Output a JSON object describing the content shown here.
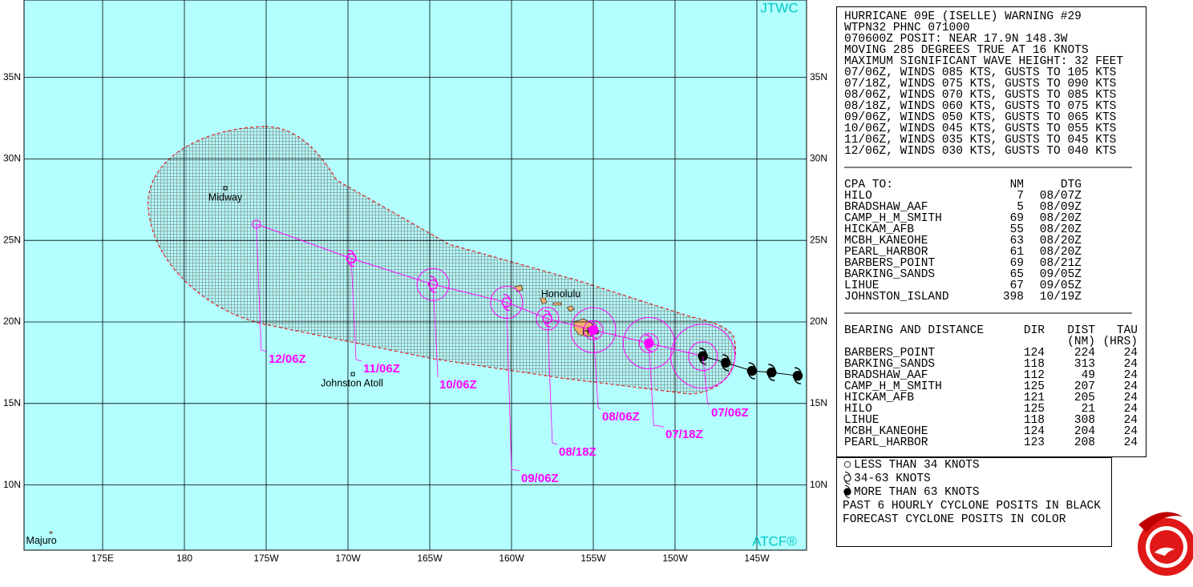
{
  "map": {
    "brand_top": "JTWC",
    "brand_bottom": "ATCF®",
    "lat_ticks": [
      {
        "value": 10,
        "label": "10N"
      },
      {
        "value": 15,
        "label": "15N"
      },
      {
        "value": 20,
        "label": "20N"
      },
      {
        "value": 25,
        "label": "25N"
      },
      {
        "value": 30,
        "label": "30N"
      },
      {
        "value": 35,
        "label": "35N"
      }
    ],
    "lon_ticks": [
      {
        "value": 175,
        "label": "175E"
      },
      180,
      {
        "value": -175,
        "label": "175W"
      },
      {
        "value": -170,
        "label": "170W"
      },
      {
        "value": -165,
        "label": "165W"
      },
      {
        "value": -160,
        "label": "160W"
      },
      {
        "value": -155,
        "label": "155W"
      },
      {
        "value": -150,
        "label": "150W"
      },
      {
        "value": -145,
        "label": "145W"
      }
    ],
    "places": [
      {
        "name": "Midway",
        "lat": 28.2,
        "lon": -177.5
      },
      {
        "name": "Johnston Atoll",
        "lat": 16.8,
        "lon": -169.7
      },
      {
        "name": "Honolulu",
        "lat": 21.3,
        "lon": -157.9
      },
      {
        "name": "Hilo",
        "lat": 19.7,
        "lon": -155.1
      },
      {
        "name": "Majuro",
        "lat": 7.1,
        "lon": 171.4
      }
    ],
    "forecast": [
      {
        "label": "07/06Z",
        "lat": 17.9,
        "lon": -148.3,
        "symbol": "hurricane",
        "color": "#000000"
      },
      {
        "label": "07/18Z",
        "lat": 18.7,
        "lon": -151.6,
        "symbol": "hurricane",
        "color": "#ff00ff"
      },
      {
        "label": "08/06Z",
        "lat": 19.5,
        "lon": -155.0,
        "symbol": "hurricane",
        "color": "#ff00ff"
      },
      {
        "label": "08/18Z",
        "lat": 20.2,
        "lon": -157.8,
        "symbol": "storm",
        "color": "#ff00ff"
      },
      {
        "label": "09/06Z",
        "lat": 21.2,
        "lon": -160.3,
        "symbol": "storm",
        "color": "#ff00ff"
      },
      {
        "label": "10/06Z",
        "lat": 22.3,
        "lon": -164.8,
        "symbol": "storm",
        "color": "#ff00ff"
      },
      {
        "label": "11/06Z",
        "lat": 23.9,
        "lon": -169.8,
        "symbol": "storm",
        "color": "#ff00ff"
      },
      {
        "label": "12/06Z",
        "lat": 26.0,
        "lon": -175.6,
        "symbol": "depression",
        "color": "#ff00ff"
      }
    ],
    "past": [
      {
        "lat": 17.5,
        "lon": -146.9
      },
      {
        "lat": 17.0,
        "lon": -145.3
      },
      {
        "lat": 16.9,
        "lon": -144.1
      },
      {
        "lat": 16.7,
        "lon": -142.5
      }
    ]
  },
  "header": {
    "lines": [
      "HURRICANE 09E (ISELLE) WARNING #29",
      "WTPN32 PHNC 071000",
      "070600Z POSIT: NEAR 17.9N 148.3W",
      "MOVING 285 DEGREES TRUE AT 16 KNOTS",
      "MAXIMUM SIGNIFICANT WAVE HEIGHT: 32 FEET",
      "07/06Z, WINDS 085 KTS, GUSTS TO 105 KTS",
      "07/18Z, WINDS 075 KTS, GUSTS TO 090 KTS",
      "08/06Z, WINDS 070 KTS, GUSTS TO 085 KTS",
      "08/18Z, WINDS 060 KTS, GUSTS TO 075 KTS",
      "09/06Z, WINDS 050 KTS, GUSTS TO 065 KTS",
      "10/06Z, WINDS 045 KTS, GUSTS TO 055 KTS",
      "11/06Z, WINDS 035 KTS, GUSTS TO 045 KTS",
      "12/06Z, WINDS 030 KTS, GUSTS TO 040 KTS"
    ]
  },
  "cpa": {
    "title": "CPA TO:",
    "columns": [
      "NM",
      "DTG"
    ],
    "rows": [
      [
        "HILO",
        "7",
        "08/07Z"
      ],
      [
        "BRADSHAW_AAF",
        "5",
        "08/09Z"
      ],
      [
        "CAMP_H_M_SMITH",
        "69",
        "08/20Z"
      ],
      [
        "HICKAM_AFB",
        "55",
        "08/20Z"
      ],
      [
        "MCBH_KANEOHE",
        "63",
        "08/20Z"
      ],
      [
        "PEARL_HARBOR",
        "61",
        "08/20Z"
      ],
      [
        "BARBERS_POINT",
        "69",
        "08/21Z"
      ],
      [
        "BARKING_SANDS",
        "65",
        "09/05Z"
      ],
      [
        "LIHUE",
        "67",
        "09/05Z"
      ],
      [
        "JOHNSTON_ISLAND",
        "398",
        "10/19Z"
      ]
    ]
  },
  "bearing": {
    "title": "BEARING AND DISTANCE",
    "columns": [
      "DIR",
      "DIST",
      "TAU"
    ],
    "units": [
      "(NM)",
      "(HRS)"
    ],
    "rows": [
      [
        "BARBERS_POINT",
        "124",
        "224",
        "24"
      ],
      [
        "BARKING_SANDS",
        "118",
        "313",
        "24"
      ],
      [
        "BRADSHAW_AAF",
        "112",
        "49",
        "24"
      ],
      [
        "CAMP_H_M_SMITH",
        "125",
        "207",
        "24"
      ],
      [
        "HICKAM_AFB",
        "121",
        "205",
        "24"
      ],
      [
        "HILO",
        "125",
        "21",
        "24"
      ],
      [
        "LIHUE",
        "118",
        "308",
        "24"
      ],
      [
        "MCBH_KANEOHE",
        "124",
        "204",
        "24"
      ],
      [
        "PEARL_HARBOR",
        "123",
        "208",
        "24"
      ]
    ]
  },
  "legend": {
    "items": [
      "LESS THAN 34 KNOTS",
      "34-63 KNOTS",
      "MORE THAN 63 KNOTS"
    ],
    "notes": [
      "PAST 6 HOURLY CYCLONE POSITS IN BLACK",
      "FORECAST CYCLONE POSITS IN COLOR"
    ]
  }
}
